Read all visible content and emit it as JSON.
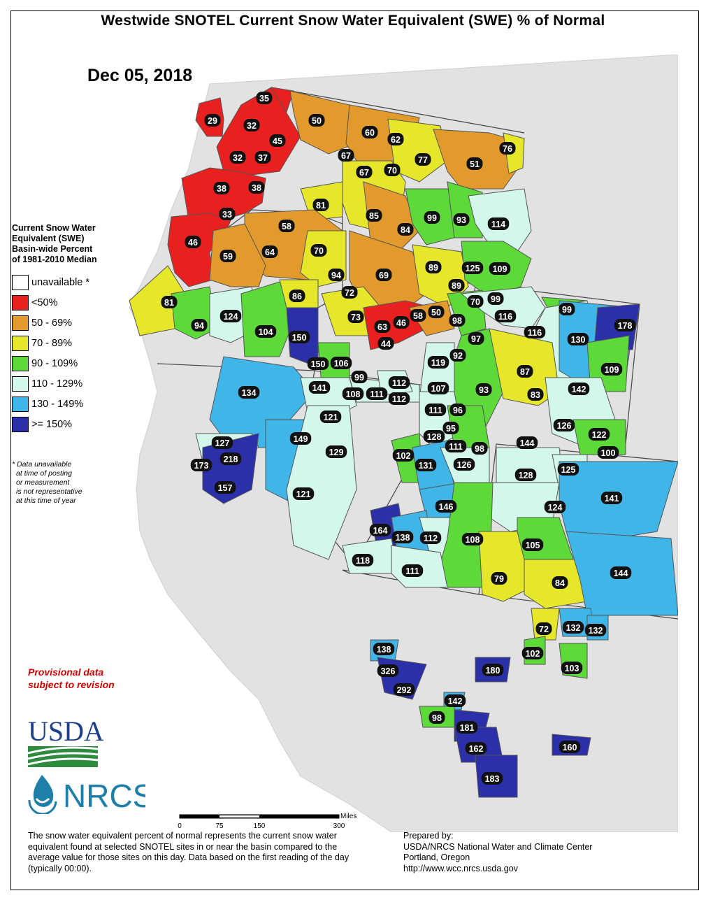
{
  "title": "Westwide SNOTEL Current Snow Water Equivalent (SWE) % of Normal",
  "date": "Dec 05, 2018",
  "legend": {
    "title_lines": [
      "Current Snow Water",
      "Equivalent (SWE)",
      "Basin-wide Percent",
      "of 1981-2010 Median"
    ],
    "classes": [
      {
        "label": "unavailable *",
        "color": "#ffffff"
      },
      {
        "label": "<50%",
        "color": "#e8201f"
      },
      {
        "label": "50 - 69%",
        "color": "#e29a2c"
      },
      {
        "label": "70 - 89%",
        "color": "#e6e62a"
      },
      {
        "label": "90 - 109%",
        "color": "#5dd93a"
      },
      {
        "label": "110 - 129%",
        "color": "#d4f7ec"
      },
      {
        "label": "130 - 149%",
        "color": "#3fb5e8"
      },
      {
        "label": ">= 150%",
        "color": "#2b2fa8"
      }
    ],
    "note_lines": [
      "*  Data unavailable",
      "   at time of posting",
      "   or measurement",
      "   is not representative",
      "   at this time of year"
    ]
  },
  "provisional_lines": [
    "Provisional data",
    "subject to revision"
  ],
  "logos": {
    "usda": "USDA",
    "nrcs": "NRCS"
  },
  "scale_bar": {
    "unit": "Miles",
    "ticks": [
      "0",
      "75",
      "150",
      "300"
    ]
  },
  "footnote": "The snow water equivalent percent of normal represents the current snow water equivalent found at selected SNOTEL sites in or near the basin compared to the average value for those sites on this day. Data based on the first reading of the day (typically 00:00).",
  "prepared_lines": [
    "Prepared by:",
    "USDA/NRCS National Water and Climate Center",
    "Portland, Oregon",
    "http://www.wcc.nrcs.usda.gov"
  ],
  "basin_values": [
    "29",
    "35",
    "32",
    "45",
    "32",
    "37",
    "38",
    "38",
    "33",
    "46",
    "50",
    "60",
    "62",
    "76",
    "67",
    "67",
    "70",
    "77",
    "51",
    "81",
    "85",
    "84",
    "99",
    "93",
    "114",
    "58",
    "59",
    "64",
    "70",
    "69",
    "89",
    "125",
    "109",
    "94",
    "72",
    "89",
    "81",
    "124",
    "94",
    "86",
    "104",
    "73",
    "150",
    "63",
    "46",
    "58",
    "50",
    "44",
    "98",
    "70",
    "99",
    "116",
    "99",
    "116",
    "130",
    "178",
    "97",
    "92",
    "119",
    "87",
    "83",
    "109",
    "150",
    "106",
    "99",
    "134",
    "141",
    "108",
    "111",
    "112",
    "112",
    "107",
    "111",
    "93",
    "96",
    "142",
    "126",
    "122",
    "95",
    "127",
    "121",
    "149",
    "128",
    "111",
    "98",
    "144",
    "100",
    "173",
    "218",
    "129",
    "157",
    "102",
    "131",
    "126",
    "128",
    "125",
    "121",
    "141",
    "146",
    "124",
    "164",
    "138",
    "112",
    "108",
    "105",
    "118",
    "111",
    "79",
    "84",
    "144",
    "72",
    "132",
    "132",
    "102",
    "103",
    "138",
    "180",
    "326",
    "292",
    "142",
    "98",
    "181",
    "162",
    "160",
    "183"
  ]
}
